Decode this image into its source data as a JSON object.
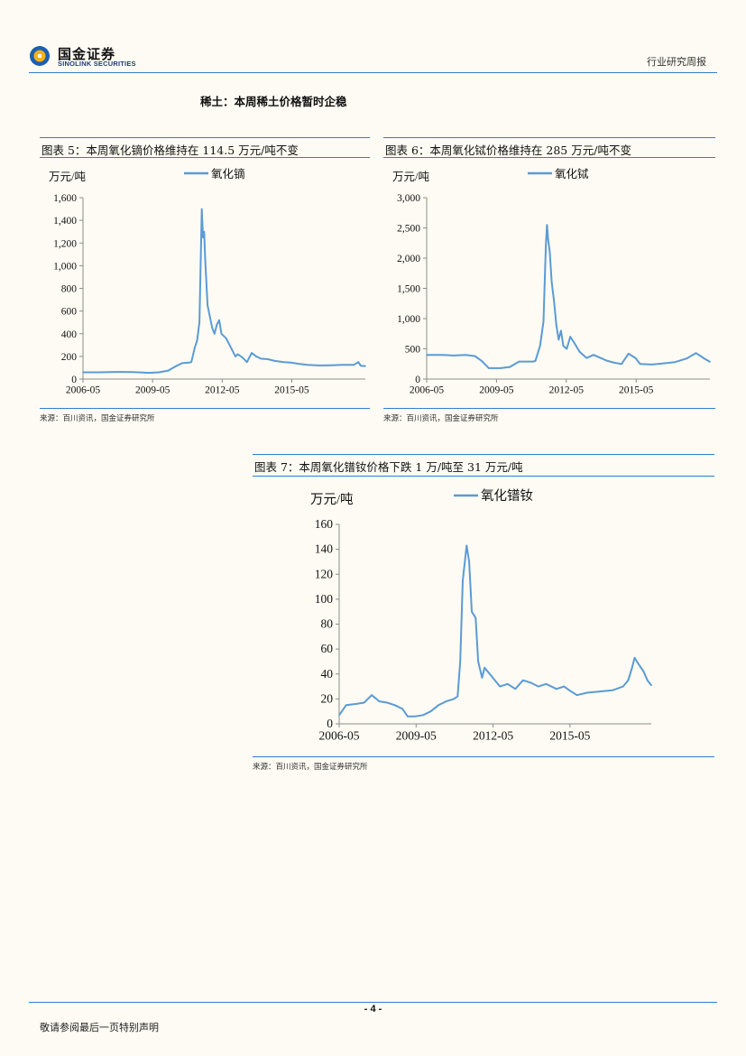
{
  "header": {
    "logo_cn": "国金证券",
    "logo_en": "SINOLINK SECURITIES",
    "report_type": "行业研究周报"
  },
  "section_title": "稀土：本周稀土价格暂时企稳",
  "footer": {
    "page_number": "- 4 -",
    "note": "敬请参阅最后一页特别声明"
  },
  "colors": {
    "accent": "#2f7fd0",
    "series": "#5b9bd5"
  },
  "chart_data": [
    {
      "type": "line",
      "figure_title": "图表 5：本周氧化镝价格维持在 114.5 万元/吨不变",
      "ylabel": "万元/吨",
      "legend": "氧化镝",
      "ylim": [
        0,
        1600
      ],
      "yticks": [
        0,
        200,
        400,
        600,
        800,
        1000,
        1200,
        1400,
        1600
      ],
      "ytick_labels": [
        "0",
        "200",
        "400",
        "600",
        "800",
        "1,000",
        "1,200",
        "1,400",
        "1,600"
      ],
      "xlim": [
        2006.33,
        2018.5
      ],
      "xticks": [
        2006.33,
        2009.33,
        2012.33,
        2015.33
      ],
      "xtick_labels": [
        "2006-05",
        "2009-05",
        "2012-05",
        "2015-05"
      ],
      "source": "来源：百川资讯，国金证券研究所",
      "x": [
        2006.33,
        2007.0,
        2007.5,
        2008.0,
        2008.5,
        2008.9,
        2009.2,
        2009.6,
        2010.0,
        2010.3,
        2010.6,
        2010.9,
        2011.0,
        2011.15,
        2011.25,
        2011.35,
        2011.45,
        2011.5,
        2011.55,
        2011.6,
        2011.7,
        2011.8,
        2011.9,
        2012.0,
        2012.1,
        2012.2,
        2012.3,
        2012.4,
        2012.5,
        2012.7,
        2012.9,
        2013.0,
        2013.2,
        2013.4,
        2013.6,
        2013.8,
        2014.0,
        2014.3,
        2014.6,
        2015.0,
        2015.3,
        2015.6,
        2016.0,
        2016.5,
        2017.0,
        2017.5,
        2018.0,
        2018.2,
        2018.3,
        2018.5
      ],
      "y": [
        60,
        60,
        62,
        63,
        62,
        58,
        55,
        60,
        75,
        110,
        140,
        145,
        150,
        280,
        340,
        500,
        1500,
        1250,
        1300,
        1050,
        650,
        550,
        450,
        400,
        480,
        520,
        400,
        380,
        360,
        280,
        200,
        220,
        190,
        150,
        230,
        200,
        180,
        175,
        160,
        150,
        145,
        135,
        125,
        120,
        122,
        125,
        125,
        150,
        118,
        114.5
      ]
    },
    {
      "type": "line",
      "figure_title": "图表 6：本周氧化铽价格维持在 285 万元/吨不变",
      "ylabel": "万元/吨",
      "legend": "氧化铽",
      "ylim": [
        0,
        3000
      ],
      "yticks": [
        0,
        500,
        1000,
        1500,
        2000,
        2500,
        3000
      ],
      "ytick_labels": [
        "0",
        "500",
        "1,000",
        "1,500",
        "2,000",
        "2,500",
        "3,000"
      ],
      "xlim": [
        2006.33,
        2018.5
      ],
      "xticks": [
        2006.33,
        2009.33,
        2012.33,
        2015.33
      ],
      "xtick_labels": [
        "2006-05",
        "2009-05",
        "2012-05",
        "2015-05"
      ],
      "source": "来源：百川资讯，国金证券研究所",
      "x": [
        2006.33,
        2007.0,
        2007.5,
        2008.0,
        2008.4,
        2008.7,
        2009.0,
        2009.5,
        2009.9,
        2010.3,
        2010.7,
        2010.9,
        2011.0,
        2011.2,
        2011.35,
        2011.45,
        2011.5,
        2011.55,
        2011.62,
        2011.7,
        2011.8,
        2011.9,
        2012.0,
        2012.1,
        2012.2,
        2012.35,
        2012.5,
        2012.7,
        2012.9,
        2013.2,
        2013.5,
        2013.8,
        2014.1,
        2014.4,
        2014.7,
        2015.0,
        2015.3,
        2015.5,
        2016.0,
        2016.5,
        2017.0,
        2017.5,
        2017.9,
        2018.1,
        2018.3,
        2018.5
      ],
      "y": [
        400,
        400,
        390,
        400,
        380,
        300,
        180,
        180,
        200,
        290,
        290,
        290,
        300,
        550,
        950,
        2200,
        2550,
        2300,
        2100,
        1600,
        1300,
        900,
        650,
        800,
        550,
        500,
        700,
        580,
        450,
        350,
        400,
        350,
        300,
        270,
        250,
        420,
        350,
        250,
        240,
        260,
        280,
        340,
        430,
        380,
        330,
        285
      ]
    },
    {
      "type": "line",
      "figure_title": "图表 7：本周氧化镨钕价格下跌 1 万/吨至 31 万元/吨",
      "ylabel": "万元/吨",
      "legend": "氧化镨钕",
      "ylim": [
        0,
        160
      ],
      "yticks": [
        0,
        20,
        40,
        60,
        80,
        100,
        120,
        140,
        160
      ],
      "ytick_labels": [
        "0",
        "20",
        "40",
        "60",
        "80",
        "100",
        "120",
        "140",
        "160"
      ],
      "xlim": [
        2006.33,
        2018.5
      ],
      "xticks": [
        2006.33,
        2009.33,
        2012.33,
        2015.33
      ],
      "xtick_labels": [
        "2006-05",
        "2009-05",
        "2012-05",
        "2015-05"
      ],
      "source": "来源：百川资讯，国金证券研究所",
      "x": [
        2006.33,
        2006.6,
        2007.0,
        2007.3,
        2007.6,
        2007.9,
        2008.2,
        2008.5,
        2008.8,
        2009.0,
        2009.3,
        2009.6,
        2009.9,
        2010.2,
        2010.5,
        2010.8,
        2010.95,
        2011.05,
        2011.15,
        2011.3,
        2011.4,
        2011.5,
        2011.65,
        2011.75,
        2011.9,
        2012.0,
        2012.2,
        2012.4,
        2012.6,
        2012.9,
        2013.2,
        2013.5,
        2013.8,
        2014.1,
        2014.4,
        2014.8,
        2015.1,
        2015.3,
        2015.6,
        2016.0,
        2016.5,
        2017.0,
        2017.4,
        2017.6,
        2017.75,
        2017.85,
        2018.0,
        2018.2,
        2018.35,
        2018.5
      ],
      "y": [
        7,
        15,
        16,
        17,
        23,
        18,
        17,
        15,
        12,
        6,
        6,
        7,
        10,
        15,
        18,
        20,
        22,
        50,
        115,
        143,
        130,
        90,
        85,
        50,
        37,
        45,
        40,
        35,
        30,
        32,
        28,
        35,
        33,
        30,
        32,
        28,
        30,
        27,
        23,
        25,
        26,
        27,
        30,
        35,
        45,
        53,
        48,
        42,
        35,
        31
      ]
    }
  ]
}
